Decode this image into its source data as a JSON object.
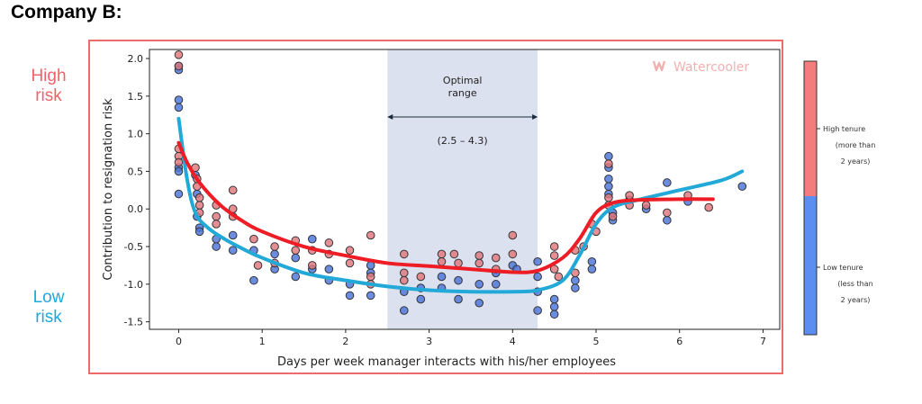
{
  "page_title": "Company B:",
  "side_labels": {
    "high": "High\nrisk",
    "low": "Low\nrisk",
    "high_color": "#f0616a",
    "low_color": "#1ea8dc"
  },
  "watermark": "Watercooler",
  "chart_data": {
    "type": "scatter",
    "xlabel": "Days per week manager interacts with his/her employees",
    "ylabel": "Contribution to resignation risk",
    "xlim": [
      -0.35,
      7.2
    ],
    "ylim": [
      -1.6,
      2.12
    ],
    "xticks": [
      "0",
      "1",
      "2",
      "3",
      "4",
      "5",
      "6",
      "7"
    ],
    "yticks": [
      "2.0",
      "1.5",
      "1.0",
      "0.5",
      "0.0",
      "-0.5",
      "-1.0",
      "-1.5"
    ],
    "optimal_range": {
      "x_start": 2.5,
      "x_end": 4.3,
      "label": "Optimal\nrange",
      "range_text": "(2.5 – 4.3)",
      "color": "#dbe1ee"
    },
    "colorbar": {
      "high_label": "High tenure",
      "high_sub": "(more than\n2 years)",
      "low_label": "Low tenure",
      "low_sub": "(less than\n2 years)",
      "high_color": "#f47c7c",
      "low_color": "#5b8ef0"
    },
    "series": [
      {
        "name": "High tenure",
        "color": "#ee1c25",
        "point_color": "#e0767a",
        "curve": [
          [
            0,
            0.88
          ],
          [
            0.1,
            0.62
          ],
          [
            0.25,
            0.35
          ],
          [
            0.5,
            0.05
          ],
          [
            0.75,
            -0.15
          ],
          [
            1,
            -0.3
          ],
          [
            1.5,
            -0.5
          ],
          [
            2,
            -0.62
          ],
          [
            2.5,
            -0.72
          ],
          [
            3,
            -0.76
          ],
          [
            3.5,
            -0.8
          ],
          [
            4,
            -0.84
          ],
          [
            4.3,
            -0.82
          ],
          [
            4.6,
            -0.65
          ],
          [
            4.8,
            -0.4
          ],
          [
            5,
            -0.05
          ],
          [
            5.2,
            0.08
          ],
          [
            5.5,
            0.12
          ],
          [
            6,
            0.13
          ],
          [
            6.4,
            0.13
          ]
        ],
        "points": [
          [
            0,
            2.05
          ],
          [
            0,
            1.9
          ],
          [
            0,
            0.8
          ],
          [
            0,
            0.7
          ],
          [
            0,
            0.62
          ],
          [
            0.2,
            0.55
          ],
          [
            0.22,
            0.4
          ],
          [
            0.22,
            0.3
          ],
          [
            0.25,
            0.15
          ],
          [
            0.25,
            0.05
          ],
          [
            0.25,
            -0.05
          ],
          [
            0.45,
            0.05
          ],
          [
            0.45,
            -0.1
          ],
          [
            0.45,
            -0.2
          ],
          [
            0.65,
            0.25
          ],
          [
            0.65,
            0.0
          ],
          [
            0.65,
            -0.1
          ],
          [
            0.9,
            -0.4
          ],
          [
            0.95,
            -0.75
          ],
          [
            1.15,
            -0.5
          ],
          [
            1.15,
            -0.72
          ],
          [
            1.4,
            -0.42
          ],
          [
            1.4,
            -0.55
          ],
          [
            1.6,
            -0.55
          ],
          [
            1.6,
            -0.75
          ],
          [
            1.8,
            -0.45
          ],
          [
            1.8,
            -0.6
          ],
          [
            2.05,
            -0.55
          ],
          [
            2.05,
            -0.72
          ],
          [
            2.3,
            -0.35
          ],
          [
            2.3,
            -0.9
          ],
          [
            2.3,
            -1.0
          ],
          [
            2.7,
            -0.6
          ],
          [
            2.7,
            -0.85
          ],
          [
            2.7,
            -0.95
          ],
          [
            2.9,
            -0.9
          ],
          [
            3.15,
            -0.6
          ],
          [
            3.15,
            -0.7
          ],
          [
            3.3,
            -0.6
          ],
          [
            3.35,
            -0.72
          ],
          [
            3.6,
            -0.62
          ],
          [
            3.6,
            -0.72
          ],
          [
            3.8,
            -0.65
          ],
          [
            3.8,
            -0.8
          ],
          [
            4.0,
            -0.35
          ],
          [
            4.0,
            -0.6
          ],
          [
            4.5,
            -0.5
          ],
          [
            4.5,
            -0.62
          ],
          [
            4.5,
            -0.8
          ],
          [
            4.55,
            -0.9
          ],
          [
            4.75,
            -0.55
          ],
          [
            4.75,
            -0.85
          ],
          [
            4.85,
            -0.5
          ],
          [
            4.95,
            -0.2
          ],
          [
            5.0,
            -0.3
          ],
          [
            5.15,
            0.6
          ],
          [
            5.15,
            0.15
          ],
          [
            5.15,
            0.05
          ],
          [
            5.2,
            -0.1
          ],
          [
            5.4,
            0.18
          ],
          [
            5.4,
            0.05
          ],
          [
            5.6,
            0.05
          ],
          [
            5.85,
            -0.05
          ],
          [
            6.1,
            0.18
          ],
          [
            6.35,
            0.02
          ]
        ]
      },
      {
        "name": "Low tenure",
        "color": "#22a9d8",
        "point_color": "#4a74d8",
        "curve": [
          [
            0,
            1.2
          ],
          [
            0.1,
            0.4
          ],
          [
            0.2,
            -0.05
          ],
          [
            0.35,
            -0.25
          ],
          [
            0.55,
            -0.4
          ],
          [
            0.75,
            -0.52
          ],
          [
            1,
            -0.65
          ],
          [
            1.5,
            -0.85
          ],
          [
            2,
            -0.95
          ],
          [
            2.5,
            -1.03
          ],
          [
            3,
            -1.08
          ],
          [
            3.5,
            -1.1
          ],
          [
            4,
            -1.1
          ],
          [
            4.3,
            -1.08
          ],
          [
            4.6,
            -0.95
          ],
          [
            4.8,
            -0.62
          ],
          [
            5,
            -0.2
          ],
          [
            5.2,
            0.02
          ],
          [
            5.5,
            0.12
          ],
          [
            6,
            0.25
          ],
          [
            6.5,
            0.38
          ],
          [
            6.75,
            0.5
          ]
        ],
        "points": [
          [
            0,
            1.9
          ],
          [
            0,
            1.85
          ],
          [
            0,
            1.45
          ],
          [
            0,
            1.35
          ],
          [
            0,
            0.55
          ],
          [
            0,
            0.5
          ],
          [
            0,
            0.2
          ],
          [
            0.2,
            0.45
          ],
          [
            0.22,
            0.2
          ],
          [
            0.22,
            -0.1
          ],
          [
            0.25,
            -0.25
          ],
          [
            0.25,
            -0.3
          ],
          [
            0.45,
            -0.4
          ],
          [
            0.45,
            -0.5
          ],
          [
            0.65,
            -0.35
          ],
          [
            0.65,
            -0.55
          ],
          [
            0.9,
            -0.55
          ],
          [
            0.9,
            -0.95
          ],
          [
            1.15,
            -0.6
          ],
          [
            1.15,
            -0.8
          ],
          [
            1.4,
            -0.65
          ],
          [
            1.4,
            -0.9
          ],
          [
            1.6,
            -0.4
          ],
          [
            1.6,
            -0.8
          ],
          [
            1.8,
            -0.95
          ],
          [
            1.8,
            -0.8
          ],
          [
            2.05,
            -1.0
          ],
          [
            2.05,
            -1.15
          ],
          [
            2.3,
            -0.75
          ],
          [
            2.3,
            -0.85
          ],
          [
            2.3,
            -1.15
          ],
          [
            2.7,
            -1.1
          ],
          [
            2.7,
            -1.35
          ],
          [
            2.9,
            -1.05
          ],
          [
            2.9,
            -1.2
          ],
          [
            3.15,
            -0.9
          ],
          [
            3.15,
            -1.05
          ],
          [
            3.35,
            -0.95
          ],
          [
            3.35,
            -1.2
          ],
          [
            3.6,
            -1.0
          ],
          [
            3.6,
            -1.25
          ],
          [
            3.8,
            -0.85
          ],
          [
            3.8,
            -1.0
          ],
          [
            4.0,
            -0.75
          ],
          [
            4.05,
            -0.8
          ],
          [
            4.3,
            -0.7
          ],
          [
            4.3,
            -0.9
          ],
          [
            4.3,
            -1.1
          ],
          [
            4.3,
            -1.35
          ],
          [
            4.5,
            -1.2
          ],
          [
            4.5,
            -1.3
          ],
          [
            4.5,
            -1.4
          ],
          [
            4.75,
            -1.05
          ],
          [
            4.75,
            -0.95
          ],
          [
            4.95,
            -0.8
          ],
          [
            4.95,
            -0.7
          ],
          [
            5.15,
            0.7
          ],
          [
            5.15,
            0.55
          ],
          [
            5.15,
            0.4
          ],
          [
            5.15,
            0.3
          ],
          [
            5.15,
            0.2
          ],
          [
            5.2,
            -0.05
          ],
          [
            5.2,
            -0.15
          ],
          [
            5.4,
            0.12
          ],
          [
            5.6,
            0.0
          ],
          [
            5.85,
            -0.15
          ],
          [
            5.85,
            0.35
          ],
          [
            6.1,
            0.1
          ],
          [
            6.75,
            0.3
          ]
        ]
      }
    ]
  }
}
